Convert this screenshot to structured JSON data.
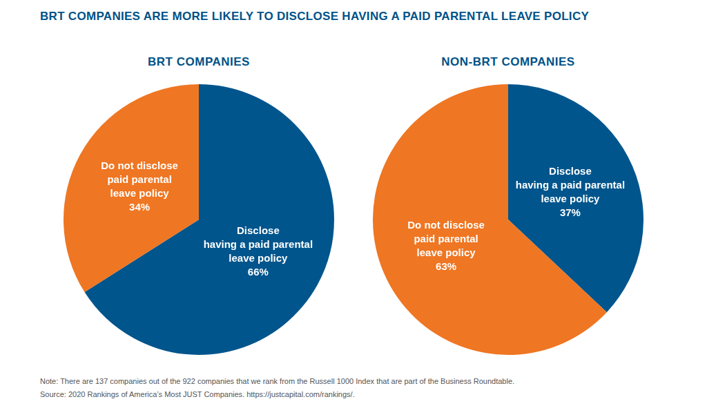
{
  "title": "BRT COMPANIES ARE MORE LIKELY TO DISCLOSE HAVING A PAID PARENTAL LEAVE POLICY",
  "chart_data": [
    {
      "type": "pie",
      "title": "BRT COMPANIES",
      "categories": [
        [
          "Disclose",
          "having a paid parental",
          "leave policy"
        ],
        [
          "Do not disclose",
          "paid parental",
          "leave policy"
        ]
      ],
      "values": [
        66,
        34
      ],
      "value_labels": [
        "66%",
        "34%"
      ],
      "colors": [
        "#00558c",
        "#ef7622"
      ],
      "data_labels": true
    },
    {
      "type": "pie",
      "title": "NON-BRT COMPANIES",
      "categories": [
        [
          "Disclose",
          "having a paid parental",
          "leave policy"
        ],
        [
          "Do not disclose",
          "paid parental",
          "leave policy"
        ]
      ],
      "values": [
        37,
        63
      ],
      "value_labels": [
        "37%",
        "63%"
      ],
      "colors": [
        "#00558c",
        "#ef7622"
      ],
      "data_labels": true
    }
  ],
  "note": "Note: There are 137 companies out of the 922 companies that we rank from the Russell 1000 Index that are part of the Business Roundtable.",
  "source": "Source: 2020 Rankings of America’s Most JUST Companies. https://justcapital.com/rankings/."
}
